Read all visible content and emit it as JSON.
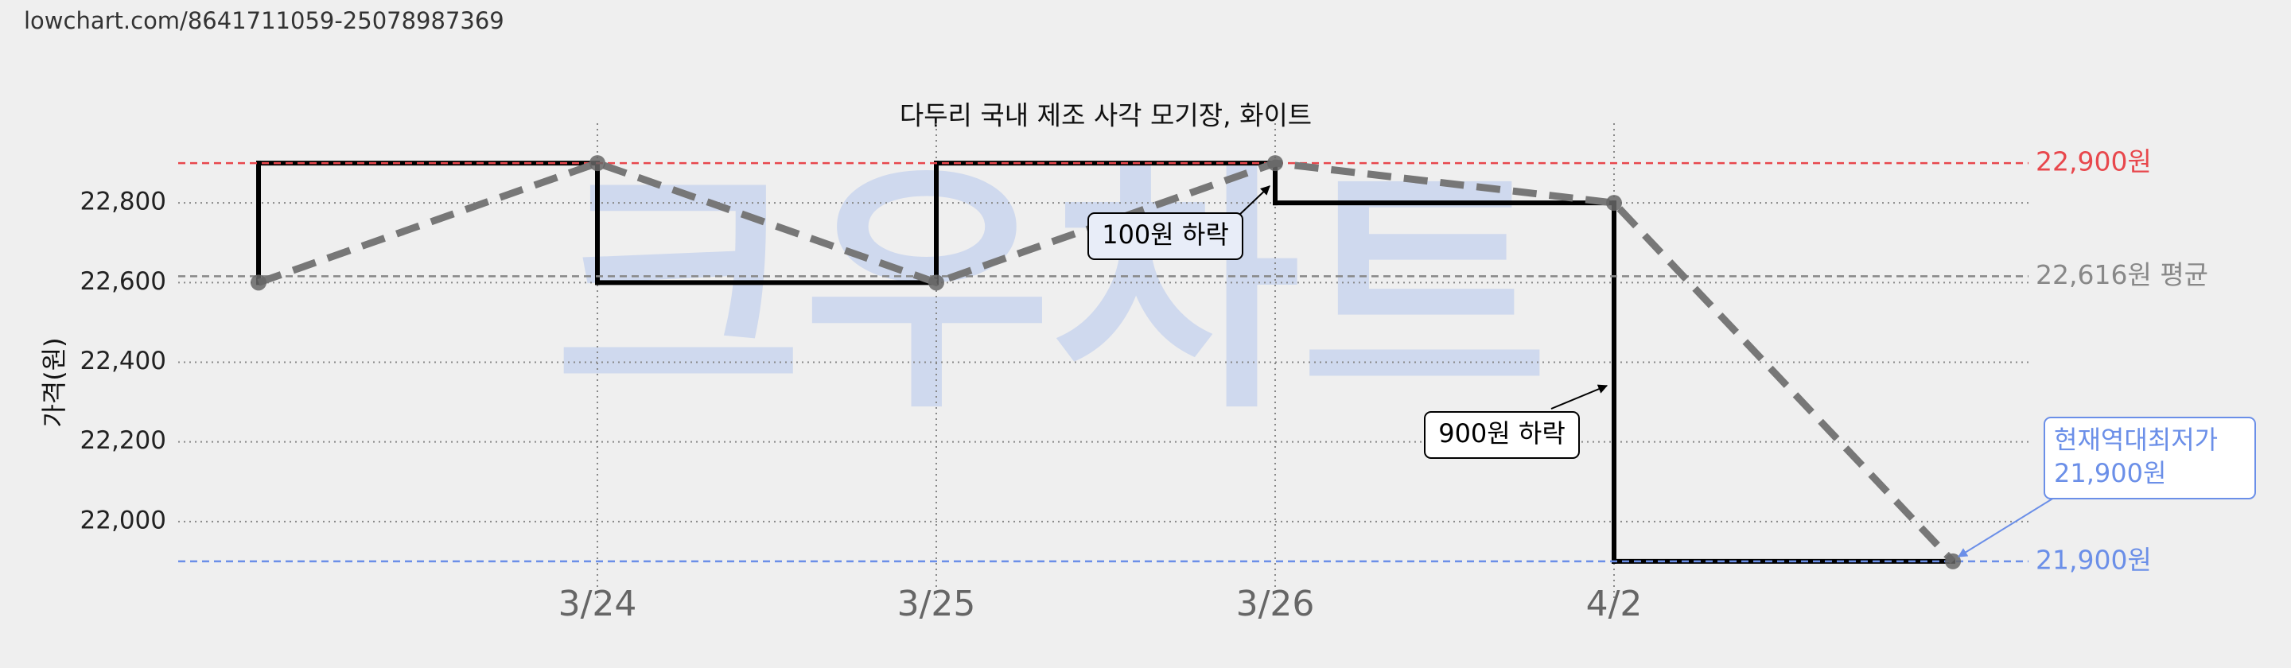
{
  "url": "lowchart.com/8641711059-25078987369",
  "chart_data": {
    "type": "line",
    "title": "다두리 국내 제조 사각 모기장, 화이트",
    "y_label": "가격(원)",
    "watermark": "크우차트",
    "categories": [
      null,
      "3/24",
      "3/25",
      "3/26",
      "4/2",
      null
    ],
    "values": [
      22600,
      22900,
      22600,
      22900,
      22800,
      21900
    ],
    "step_color": "#000000",
    "line_color": "#777777",
    "ylim": [
      21800,
      23000
    ],
    "yticks": [
      {
        "value": 22000,
        "label": "22,000"
      },
      {
        "value": 22200,
        "label": "22,200"
      },
      {
        "value": 22400,
        "label": "22,400"
      },
      {
        "value": 22600,
        "label": "22,600"
      },
      {
        "value": 22800,
        "label": "22,800"
      }
    ],
    "grid": true,
    "reference_lines": [
      {
        "value": 22900,
        "label": "22,900원",
        "color": "#e8474c"
      },
      {
        "value": 22616,
        "label": "22,616원 평균",
        "color": "#888888"
      },
      {
        "value": 21900,
        "label": "21,900원",
        "color": "#6b8fe8"
      }
    ],
    "annotations": [
      {
        "lines": [
          "100원 하락"
        ]
      },
      {
        "lines": [
          "900원 하락"
        ]
      },
      {
        "lines": [
          "현재역대최저가",
          "21,900원"
        ]
      }
    ]
  }
}
